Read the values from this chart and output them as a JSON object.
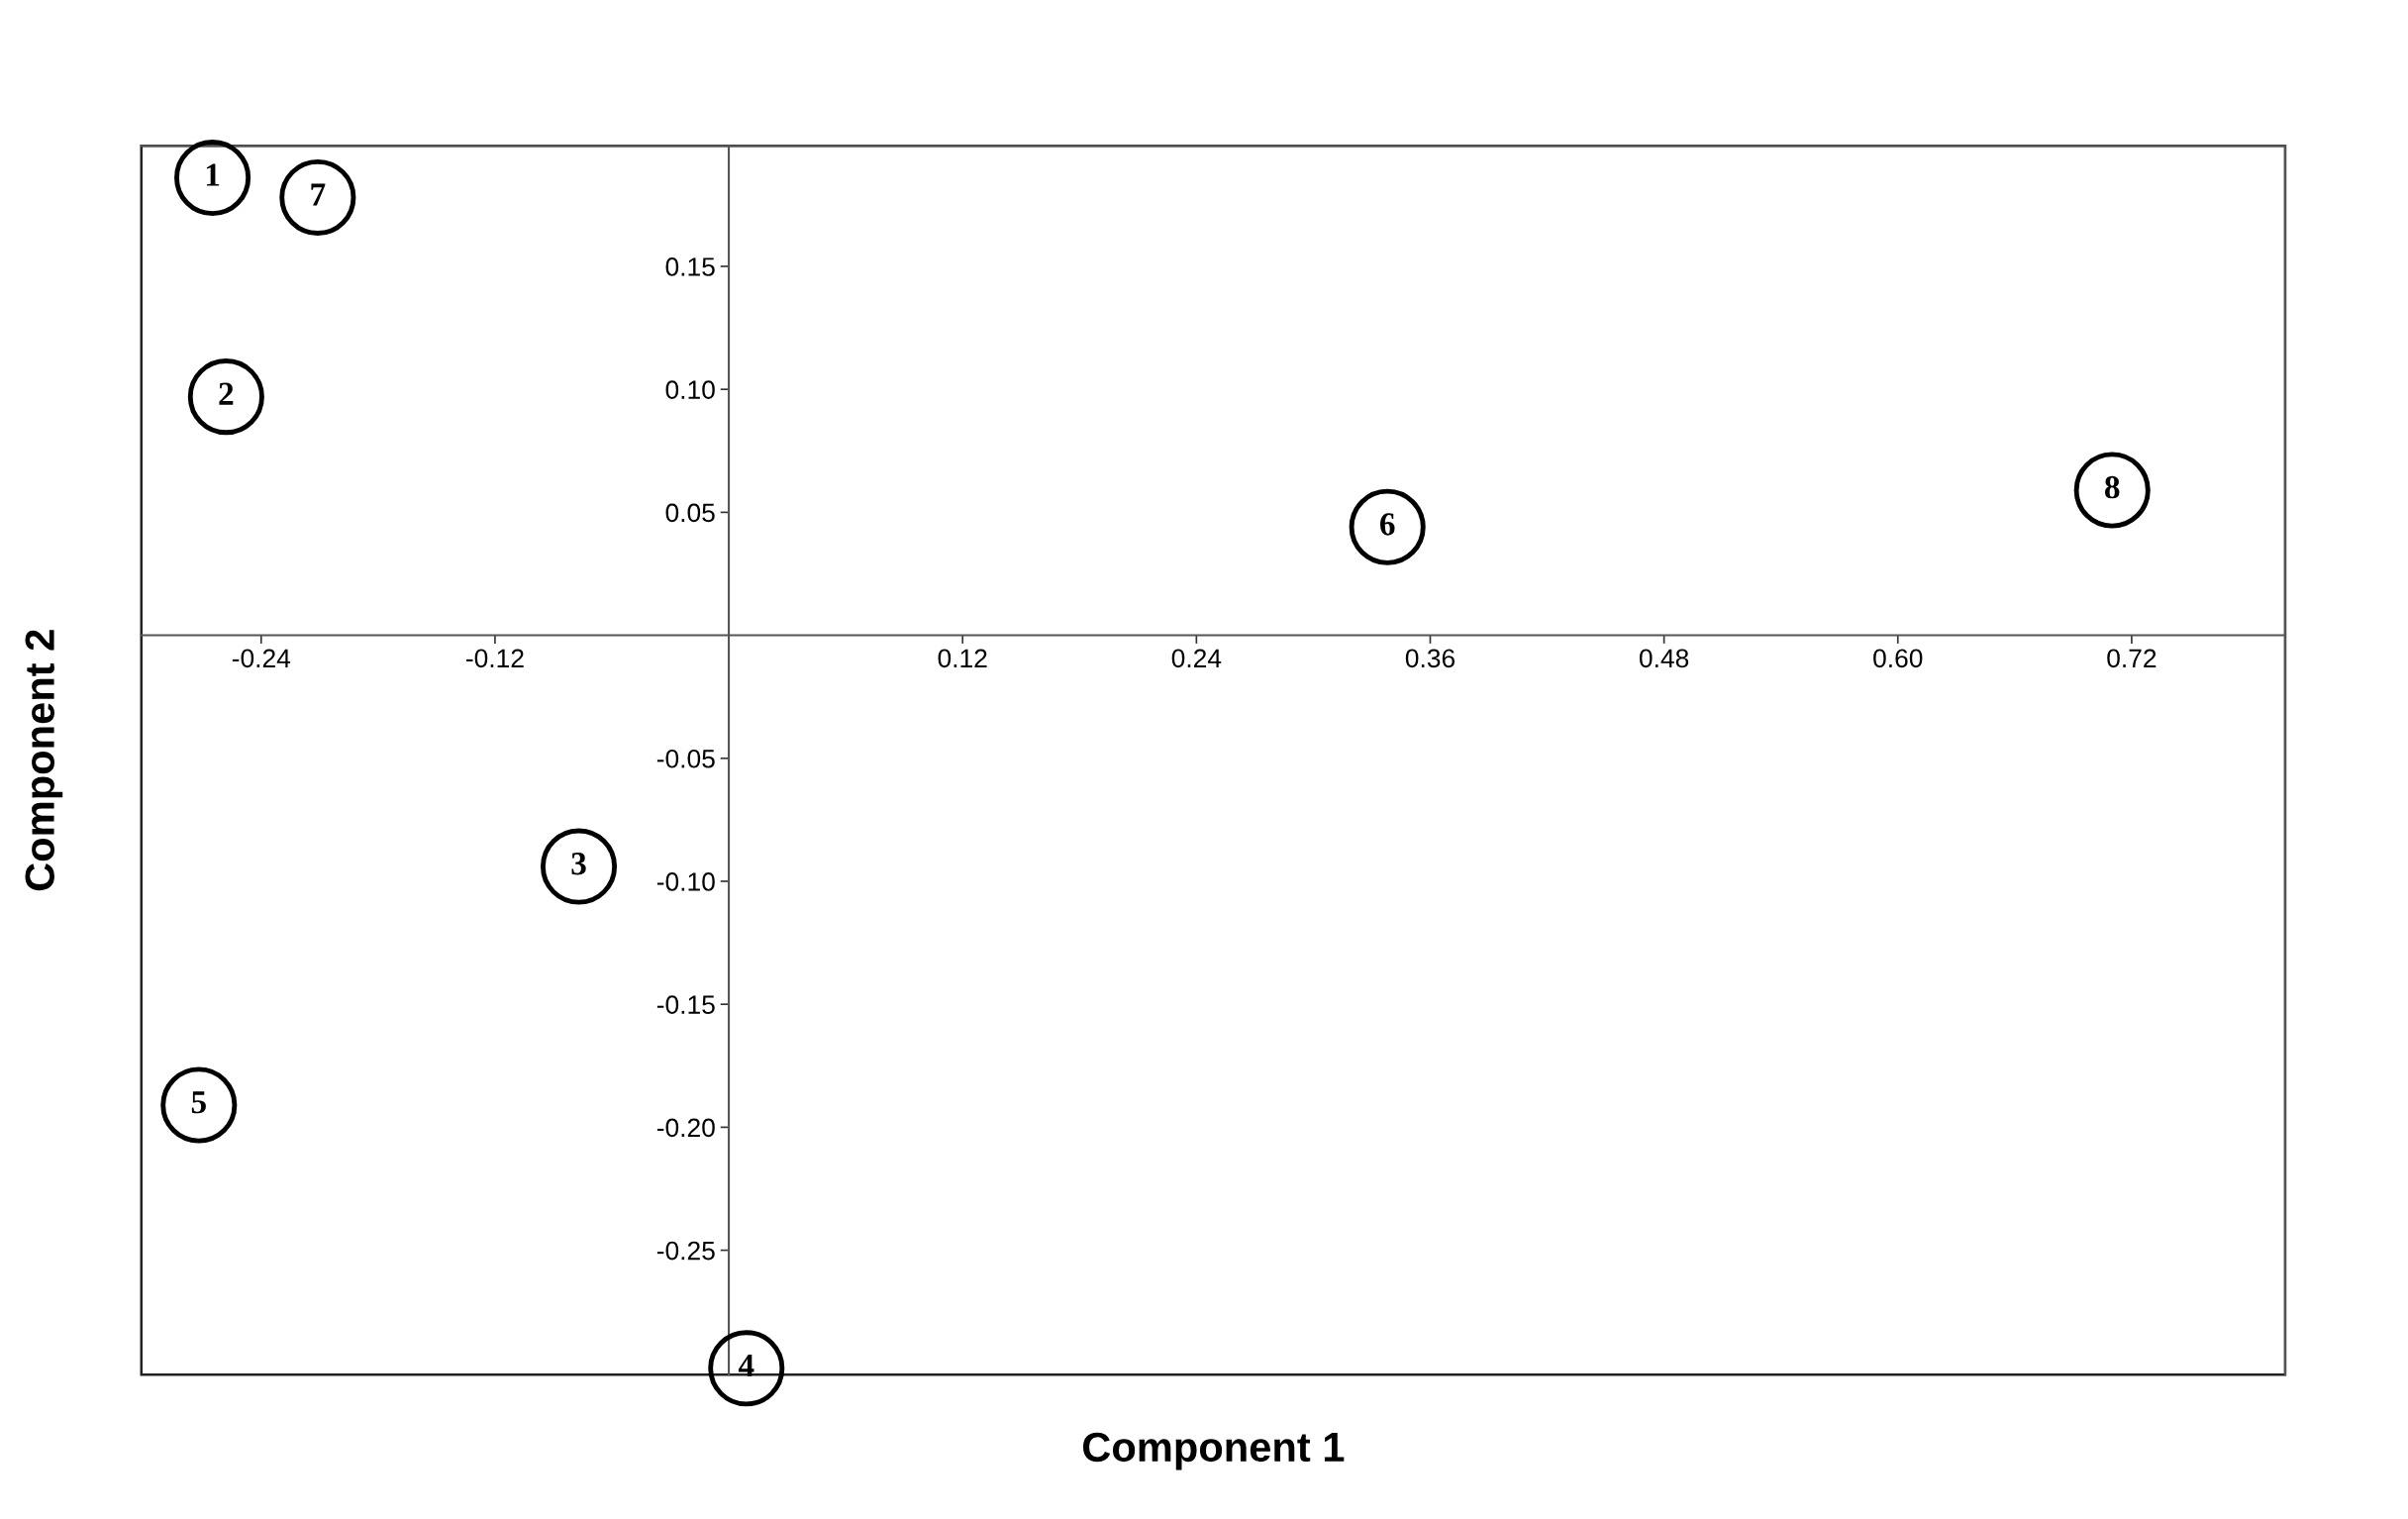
{
  "chart_data": {
    "type": "scatter",
    "xlabel": "Component 1",
    "ylabel": "Component 2",
    "x": [
      -0.265,
      -0.258,
      -0.077,
      0.009,
      -0.272,
      0.338,
      -0.211,
      0.71
    ],
    "series": [
      {
        "color": "#000000",
        "values": [
          0.186,
          0.097,
          -0.094,
          -0.298,
          -0.191,
          0.044,
          0.178,
          0.059
        ]
      }
    ],
    "marker": "circle",
    "annotations": [
      {
        "text": "1",
        "x": -0.265,
        "y": 0.186
      },
      {
        "text": "2",
        "x": -0.258,
        "y": 0.097
      },
      {
        "text": "3",
        "x": -0.077,
        "y": -0.094
      },
      {
        "text": "4",
        "x": 0.009,
        "y": -0.298
      },
      {
        "text": "5",
        "x": -0.272,
        "y": -0.191
      },
      {
        "text": "6",
        "x": 0.338,
        "y": 0.044
      },
      {
        "text": "7",
        "x": -0.211,
        "y": 0.178
      },
      {
        "text": "8",
        "x": 0.71,
        "y": 0.059
      }
    ],
    "xlim": [
      -0.3015,
      0.7988
    ],
    "ylim": [
      -0.3006,
      0.199
    ],
    "xticks": [
      -0.24,
      -0.12,
      0.12,
      0.24,
      0.36,
      0.48,
      {
        "value": 0.6,
        "label": "0.60"
      },
      0.72
    ],
    "yticks": [
      {
        "value": -0.25,
        "label": "-0.25"
      },
      {
        "value": -0.2,
        "label": "-0.20"
      },
      {
        "value": -0.15,
        "label": "-0.15"
      },
      {
        "value": -0.1,
        "label": "-0.10"
      },
      {
        "value": -0.05,
        "label": "-0.05"
      },
      0.05,
      {
        "value": 0.1,
        "label": "0.10"
      },
      0.15
    ]
  }
}
